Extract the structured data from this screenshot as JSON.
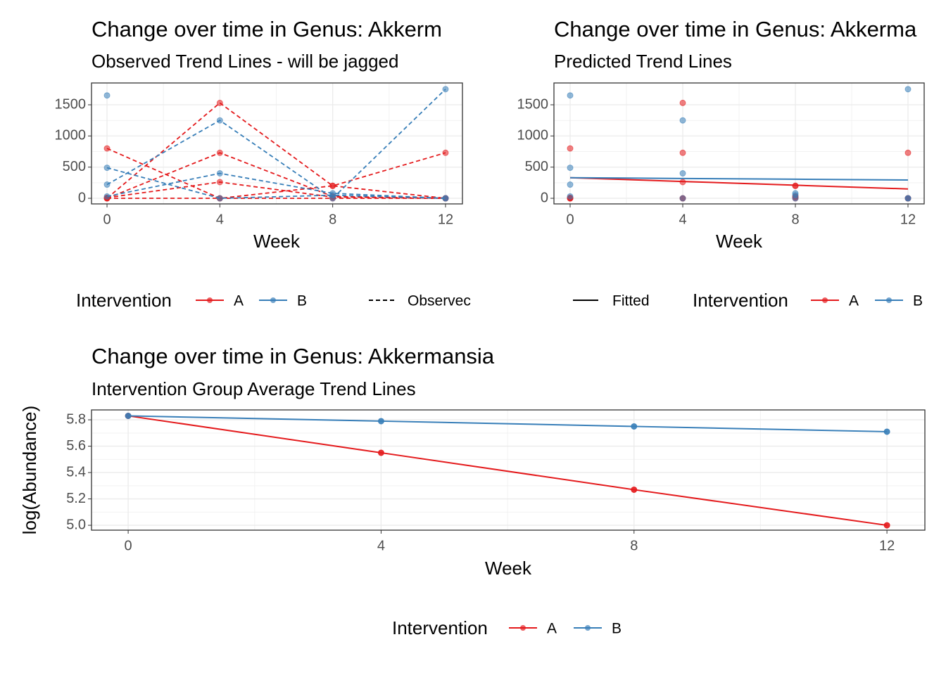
{
  "chart_data": [
    {
      "type": "line",
      "title": "Change over time in Genus: Akkerm",
      "subtitle": "Observed Trend Lines - will be jagged",
      "xlabel": "Week",
      "legend_title": "Intervention",
      "linetype_label": "Observec",
      "line_style": "dashed",
      "grid": true,
      "x": [
        0,
        4,
        8,
        12
      ],
      "xlim": [
        -0.55,
        12.6
      ],
      "xticks": [
        0,
        4,
        8,
        12
      ],
      "ylim": [
        -90,
        1850
      ],
      "yticks": [
        0,
        500,
        1000,
        1500
      ],
      "groups": [
        {
          "name": "A",
          "color": "#e41a1c",
          "subjects": [
            [
              800,
              0,
              200,
              730
            ],
            [
              0,
              1530,
              200,
              0
            ],
            [
              0,
              730,
              30,
              0
            ],
            [
              10,
              260,
              20,
              0
            ],
            [
              0,
              0,
              0,
              0
            ]
          ]
        },
        {
          "name": "B",
          "color": "#377eb8",
          "subjects": [
            [
              1650,
              null,
              null,
              null
            ],
            [
              490,
              0,
              50,
              0
            ],
            [
              220,
              1250,
              0,
              1750
            ],
            [
              30,
              400,
              80,
              0
            ]
          ]
        }
      ]
    },
    {
      "type": "scatter",
      "title": "Change over time in Genus: Akkerma",
      "subtitle": "Predicted Trend Lines",
      "xlabel": "Week",
      "legend_title": "Intervention",
      "linetype_label": "Fitted",
      "grid": true,
      "x": [
        0,
        4,
        8,
        12
      ],
      "xlim": [
        -0.575,
        12.575
      ],
      "xticks": [
        0,
        4,
        8,
        12
      ],
      "ylim": [
        -90,
        1850
      ],
      "yticks": [
        0,
        500,
        1000,
        1500
      ],
      "groups": [
        {
          "name": "A",
          "color": "#e41a1c",
          "subjects": [
            [
              800,
              0,
              200,
              730
            ],
            [
              0,
              1530,
              200,
              0
            ],
            [
              0,
              730,
              30,
              0
            ],
            [
              10,
              260,
              20,
              0
            ],
            [
              0,
              0,
              0,
              0
            ]
          ],
          "fitted": [
            330,
            270,
            210,
            150
          ]
        },
        {
          "name": "B",
          "color": "#377eb8",
          "subjects": [
            [
              1650,
              null,
              null,
              null
            ],
            [
              490,
              0,
              50,
              0
            ],
            [
              220,
              1250,
              0,
              1750
            ],
            [
              30,
              400,
              80,
              0
            ]
          ],
          "fitted": [
            330,
            318,
            306,
            294
          ]
        }
      ]
    },
    {
      "type": "line",
      "title": "Change over time in Genus: Akkermansia",
      "subtitle": "Intervention Group Average Trend Lines",
      "xlabel": "Week",
      "ylabel": "log(Abundance)",
      "legend_title": "Intervention",
      "grid": true,
      "x": [
        0,
        4,
        8,
        12
      ],
      "xlim": [
        -0.58,
        12.6
      ],
      "xticks": [
        0,
        4,
        8,
        12
      ],
      "ylim": [
        4.963,
        5.875
      ],
      "yticks": [
        {
          "value": 5,
          "label": "5.0"
        },
        5.2,
        5.4,
        5.6,
        5.8
      ],
      "series": [
        {
          "name": "A",
          "color": "#e41a1c",
          "values": [
            5.83,
            5.55,
            5.27,
            5.0
          ]
        },
        {
          "name": "B",
          "color": "#377eb8",
          "values": [
            5.83,
            5.79,
            5.75,
            5.71
          ]
        }
      ]
    }
  ]
}
